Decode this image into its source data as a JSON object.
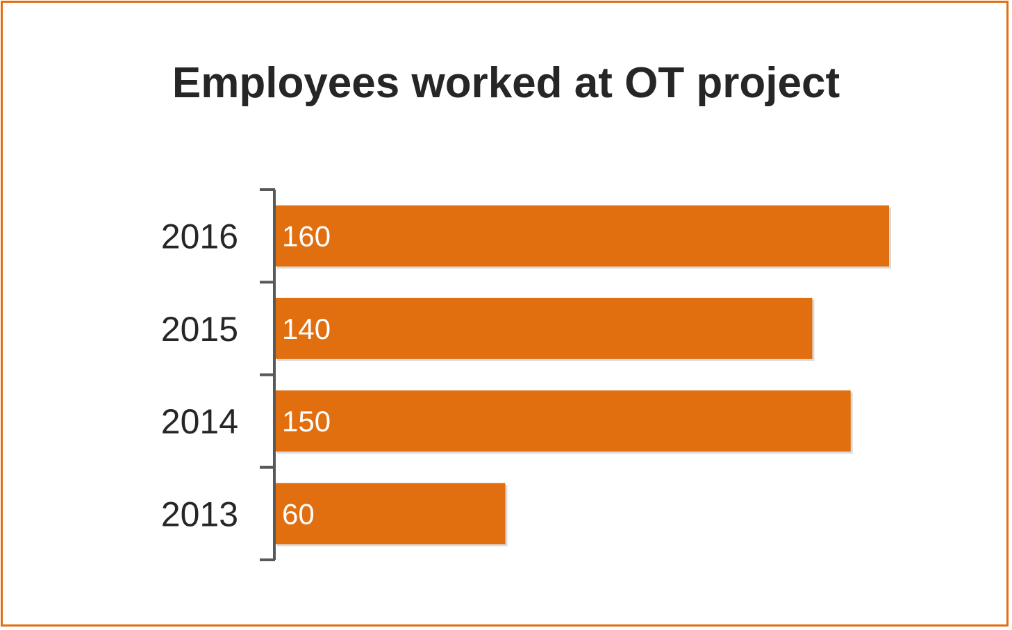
{
  "chart_data": {
    "type": "bar",
    "orientation": "horizontal",
    "title": "Employees worked at OT project",
    "categories": [
      "2016",
      "2015",
      "2014",
      "2013"
    ],
    "values": [
      160,
      140,
      150,
      60
    ],
    "xlabel": "",
    "ylabel": "",
    "xlim": [
      0,
      160
    ],
    "grid": false,
    "legend": "none",
    "data_labels": true,
    "colors": {
      "bar": "#e26f0f",
      "frame": "#e26f0f",
      "axis": "#595959",
      "text": "#262626",
      "value_text": "#ffffff"
    }
  }
}
